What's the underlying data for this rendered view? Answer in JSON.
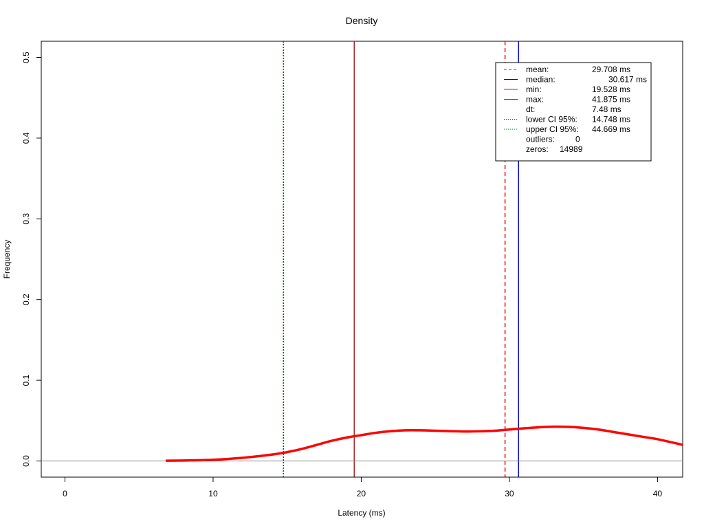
{
  "chart_data": {
    "type": "line",
    "title": "Density",
    "xlabel": "Latency (ms)",
    "ylabel": "Frequency",
    "xlim": [
      -1.6,
      41.7
    ],
    "ylim": [
      -0.02,
      0.52
    ],
    "x_ticks": [
      0,
      10,
      20,
      30,
      40
    ],
    "x_tick_labels": [
      "0",
      "10",
      "20",
      "30",
      "40"
    ],
    "y_ticks": [
      0.0,
      0.1,
      0.2,
      0.3,
      0.4,
      0.5
    ],
    "y_tick_labels": [
      "0.0",
      "0.1",
      "0.2",
      "0.3",
      "0.4",
      "0.5"
    ],
    "grid": false,
    "legend_position": "top-right",
    "series": [
      {
        "color": "#ff0000",
        "line_style": "solid",
        "x": [
          6.8,
          8,
          10,
          12,
          14,
          15,
          16,
          17,
          18,
          19,
          20,
          21,
          22,
          23,
          24,
          25,
          26,
          27,
          28,
          29,
          30,
          31,
          32,
          33,
          34,
          35,
          36,
          37,
          38,
          39,
          40,
          41.7
        ],
        "y": [
          0.0003,
          0.0006,
          0.0015,
          0.004,
          0.008,
          0.011,
          0.015,
          0.02,
          0.025,
          0.029,
          0.032,
          0.035,
          0.037,
          0.038,
          0.038,
          0.0375,
          0.037,
          0.0365,
          0.0368,
          0.0375,
          0.039,
          0.0405,
          0.0418,
          0.0425,
          0.0423,
          0.041,
          0.039,
          0.036,
          0.033,
          0.03,
          0.027,
          0.02
        ]
      }
    ],
    "reference_lines": [
      {
        "label": "mean",
        "x": 29.708,
        "color": "#ff0000",
        "style": "dashed"
      },
      {
        "label": "median",
        "x": 30.617,
        "color": "#0000cd",
        "style": "solid"
      },
      {
        "label": "min",
        "x": 19.528,
        "color": "#a52a2a",
        "style": "solid"
      },
      {
        "label": "lower CI 95%",
        "x": 14.748,
        "color": "#006400",
        "style": "dotted"
      },
      {
        "label": "zero",
        "y": 0,
        "color": "#808080",
        "style": "solid"
      }
    ],
    "legend": [
      {
        "label": "mean:",
        "value": "29.708 ms",
        "color": "#ff0000",
        "style": "dashed"
      },
      {
        "label": "median:",
        "value": "30.617 ms",
        "color": "#0000cd",
        "style": "solid"
      },
      {
        "label": "min:",
        "value": "19.528 ms",
        "color": "#a52a2a",
        "style": "solid"
      },
      {
        "label": "max:",
        "value": "41.875 ms",
        "color": "#a52a2a",
        "style": "solid"
      },
      {
        "label": "dt:",
        "value": "7.48 ms",
        "color": "",
        "style": "none"
      },
      {
        "label": "lower CI 95%:",
        "value": "14.748 ms",
        "color": "#006400",
        "style": "dotted"
      },
      {
        "label": "upper CI 95%:",
        "value": "44.669 ms",
        "color": "#006400",
        "style": "dotted"
      },
      {
        "label": "outliers:",
        "value": "0",
        "color": "",
        "style": "none"
      },
      {
        "label": "zeros:",
        "value": "14989",
        "color": "",
        "style": "none"
      }
    ]
  }
}
